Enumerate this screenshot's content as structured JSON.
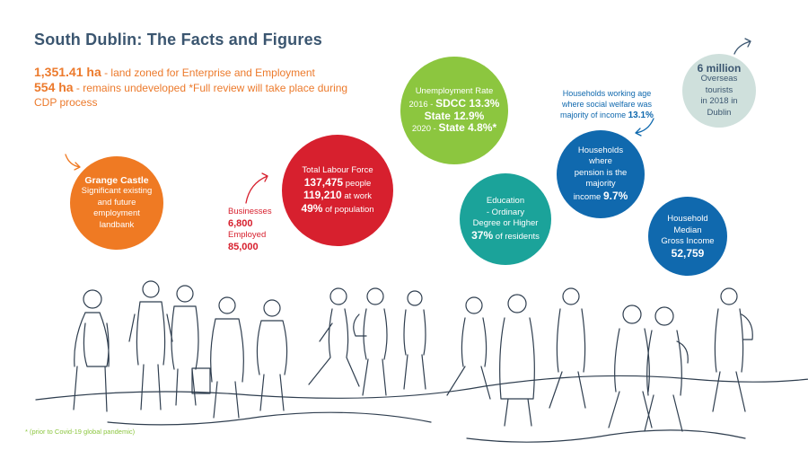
{
  "title": "South Dublin: The Facts and Figures",
  "intro": {
    "land_zoned_value": "1,351.41 ha",
    "land_zoned_text": " - land zoned for Enterprise and Employment",
    "undeveloped_value": "554 ha",
    "undeveloped_text": " - remains undeveloped *Full review will take place during CDP process"
  },
  "grange_castle": {
    "heading": "Grange Castle",
    "line1": "Significant existing",
    "line2": "and future",
    "line3": "employment",
    "line4": "landbank"
  },
  "businesses": {
    "label": "Businesses",
    "count": "6,800",
    "employed_label": "Employed",
    "employed_count": "85,000"
  },
  "labour_force": {
    "label": "Total Labour Force",
    "people_value": "137,475",
    "people_text": " people",
    "work_value": "119,210",
    "work_text": " at work",
    "pct_value": "49%",
    "pct_text": " of population"
  },
  "unemployment": {
    "label": "Unemployment Rate",
    "line2_prefix": "2016 - ",
    "line2_bold": "SDCC 13.3%",
    "line3_bold": "State 12.9%",
    "line4_prefix": "2020 - ",
    "line4_bold": "State 4.8%*"
  },
  "education": {
    "line1": "Education",
    "line2": "- Ordinary",
    "line3": "Degree or Higher",
    "pct_value": "37%",
    "pct_text": " of residents"
  },
  "welfare": {
    "line1": "Households working age",
    "line2": "where social welfare was",
    "line3_prefix": "majority of income ",
    "line3_value": "13.1%"
  },
  "pension": {
    "line1": "Households",
    "line2": "where",
    "line3": "pension is the",
    "line4": "majority",
    "line5_prefix": "income ",
    "line5_value": "9.7%"
  },
  "median_income": {
    "line1": "Household",
    "line2": "Median",
    "line3": "Gross Income",
    "value": "52,759"
  },
  "tourists": {
    "value": "6 million",
    "line1": "Overseas",
    "line2": "tourists",
    "line3": "in 2018 in",
    "line4": "Dublin"
  },
  "footnote": "* (prior to Covid-19 global pandemic)",
  "colors": {
    "title": "#3b5670",
    "orange": "#ef7a23",
    "red": "#d7202e",
    "green": "#8cc63f",
    "teal": "#1ba39a",
    "blue": "#1069ae",
    "pale": "#cfe0dc",
    "lineart": "#2f3e4f"
  },
  "icons": [
    "arrow-orange-icon",
    "arrow-red-icon",
    "arrow-blue-icon",
    "arrow-grey-icon",
    "crowd-line-drawing"
  ]
}
